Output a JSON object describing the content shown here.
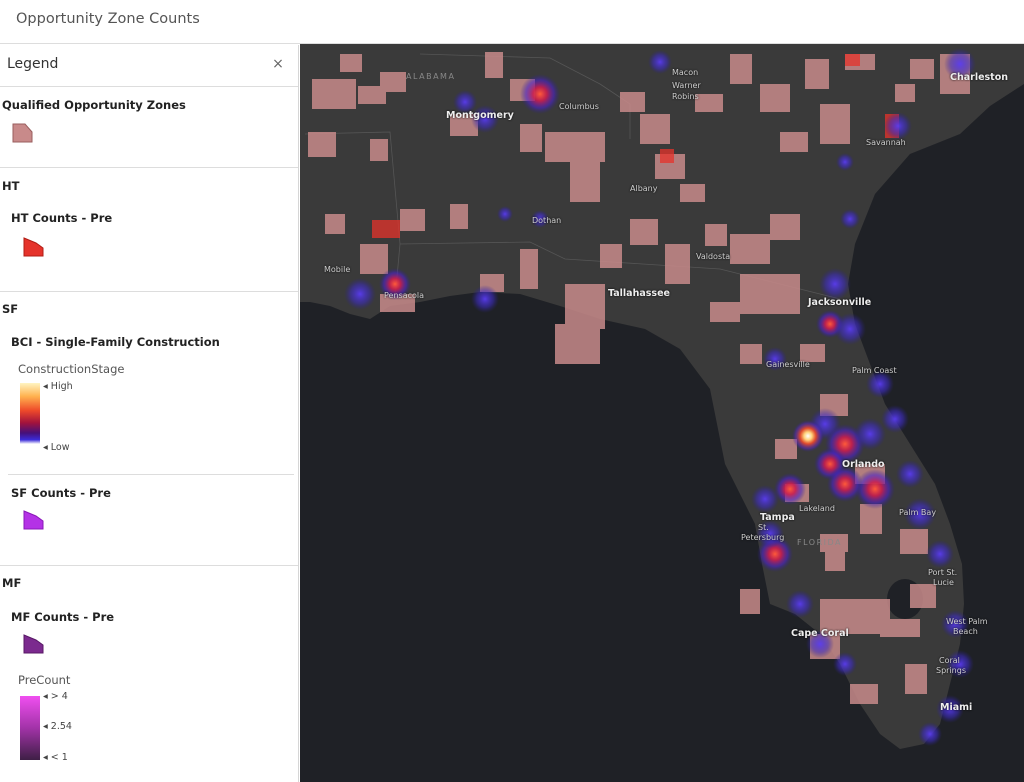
{
  "app": {
    "title": "Opportunity Zone Counts"
  },
  "legend": {
    "title": "Legend",
    "close_glyph": "×",
    "layers": {
      "qoz": {
        "title": "Qualified Opportunity Zones",
        "color": "#c88a8a"
      },
      "ht": {
        "group": "HT",
        "title": "HT Counts - Pre",
        "color": "#e5332b"
      },
      "sf": {
        "group": "SF",
        "bci_title": "BCI - Single-Family Construction",
        "field": "ConstructionStage",
        "high": "High",
        "low": "Low",
        "counts_title": "SF Counts - Pre",
        "counts_color": "#b432e6"
      },
      "mf": {
        "group": "MF",
        "title": "MF Counts - Pre",
        "color": "#7b2a8e",
        "field": "PreCount",
        "max": "> 4",
        "mid": "2.54",
        "min": "< 1"
      }
    }
  },
  "map": {
    "states": {
      "alabama": "ALABAMA",
      "florida": "FLORIDA"
    },
    "cities": {
      "macon": "Macon",
      "warner": "Warner",
      "robins": "Robins",
      "charleston": "Charleston",
      "montgomery": "Montgomery",
      "columbus": "Columbus",
      "savannah": "Savannah",
      "albany": "Albany",
      "dothan": "Dothan",
      "valdosta": "Valdosta",
      "mobile": "Mobile",
      "pensacola": "Pensacola",
      "tallahassee": "Tallahassee",
      "jacksonville": "Jacksonville",
      "gainesville": "Gainesville",
      "palm_coast": "Palm Coast",
      "orlando": "Orlando",
      "lakeland": "Lakeland",
      "tampa": "Tampa",
      "st": "St.",
      "petersburg": "Petersburg",
      "palm_bay": "Palm Bay",
      "port_st": "Port St.",
      "lucie": "Lucie",
      "west_palm": "West Palm",
      "beach": "Beach",
      "cape_coral": "Cape Coral",
      "coral": "Coral",
      "springs": "Springs",
      "miami": "Miami"
    }
  }
}
